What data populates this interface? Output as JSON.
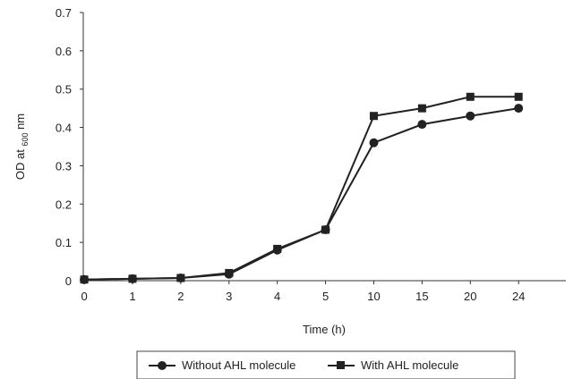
{
  "chart_data": {
    "type": "line",
    "categories": [
      "0",
      "1",
      "2",
      "3",
      "4",
      "5",
      "10",
      "15",
      "20",
      "24"
    ],
    "series": [
      {
        "name": "Without AHL molecule",
        "marker": "circle",
        "values": [
          0.003,
          0.005,
          0.007,
          0.017,
          0.08,
          0.133,
          0.36,
          0.408,
          0.43,
          0.45
        ]
      },
      {
        "name": "With AHL molecule",
        "marker": "square",
        "values": [
          0.003,
          0.005,
          0.007,
          0.02,
          0.083,
          0.133,
          0.43,
          0.45,
          0.48,
          0.48
        ]
      }
    ],
    "xlabel": "Time (h)",
    "ylabel": {
      "prefix": "OD at ",
      "subscript": "600",
      "suffix": " nm"
    },
    "ylim": [
      0,
      0.7
    ],
    "yticks": [
      "0",
      "0.1",
      "0.2",
      "0.3",
      "0.4",
      "0.5",
      "0.6",
      "0.7"
    ],
    "grid": false,
    "legend_position": "bottom",
    "line_color": "#222222"
  }
}
